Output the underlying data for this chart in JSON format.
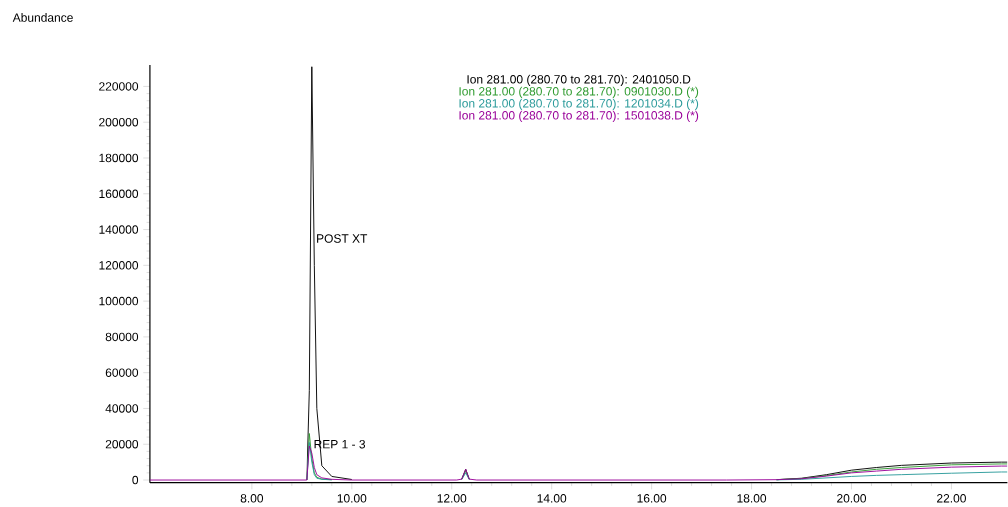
{
  "chart_data": {
    "type": "line",
    "ylabel": "Abundance",
    "x": [
      5.96,
      9.0,
      9.1,
      9.15,
      9.2,
      9.25,
      9.3,
      9.4,
      9.6,
      10.0,
      12.1,
      12.2,
      12.28,
      12.35,
      12.5,
      17.5,
      18.5,
      19.0,
      19.5,
      20.0,
      20.5,
      21.0,
      22.0,
      23.0,
      23.12
    ],
    "series": [
      {
        "name": "Ion 281.00 (280.70 to 281.70): 2401050.D",
        "color": "#000000",
        "values": [
          null,
          null,
          0,
          50000,
          231000,
          120000,
          40000,
          8000,
          2000,
          300,
          null,
          500,
          6000,
          500,
          null,
          null,
          200,
          1000,
          3000,
          5500,
          7000,
          8200,
          9500,
          10000,
          10000
        ]
      },
      {
        "name": "Ion 281.00 (280.70 to 281.70): 0901030.D (*)",
        "color": "#2e9a2e",
        "values": [
          null,
          null,
          0,
          26000,
          12000,
          4000,
          1500,
          500,
          200,
          null,
          null,
          400,
          5000,
          400,
          null,
          null,
          200,
          800,
          2500,
          4500,
          6000,
          7000,
          8500,
          9000,
          9000
        ]
      },
      {
        "name": "Ion 281.00 (280.70 to 281.70): 1201034.D (*)",
        "color": "#2a9a9a",
        "values": [
          null,
          null,
          0,
          21000,
          10000,
          3000,
          1000,
          400,
          100,
          null,
          null,
          300,
          4000,
          300,
          null,
          null,
          100,
          400,
          1200,
          2000,
          2600,
          3000,
          3800,
          4500,
          4500
        ]
      },
      {
        "name": "Ion 281.00 (280.70 to 281.70): 1501038.D (*)",
        "color": "#990099",
        "values": [
          0,
          0,
          0,
          19000,
          15000,
          7000,
          3000,
          1200,
          400,
          0,
          0,
          500,
          6000,
          500,
          0,
          0,
          200,
          700,
          2200,
          4000,
          5000,
          6000,
          7200,
          7800,
          7800
        ]
      }
    ],
    "xlim": [
      5.96,
      23.12
    ],
    "ylim": [
      -1500,
      232000
    ],
    "xticks": [
      {
        "value": 8,
        "label": "8.00"
      },
      {
        "value": 10,
        "label": "10.00"
      },
      {
        "value": 12,
        "label": "12.00"
      },
      {
        "value": 14,
        "label": "14.00"
      },
      {
        "value": 16,
        "label": "16.00"
      },
      {
        "value": 18,
        "label": "18.00"
      },
      {
        "value": 20,
        "label": "20.00"
      },
      {
        "value": 22,
        "label": "22.00"
      }
    ],
    "yticks": [
      0,
      20000,
      40000,
      60000,
      80000,
      100000,
      120000,
      140000,
      160000,
      180000,
      200000,
      220000
    ],
    "annotations": [
      {
        "text": "POST XT",
        "x": 9.2,
        "y": 135000
      },
      {
        "text": "REP 1 - 3",
        "x": 9.15,
        "y": 20000
      }
    ],
    "legend": "top",
    "grid": false,
    "marker": "none",
    "line_style": "solid"
  }
}
